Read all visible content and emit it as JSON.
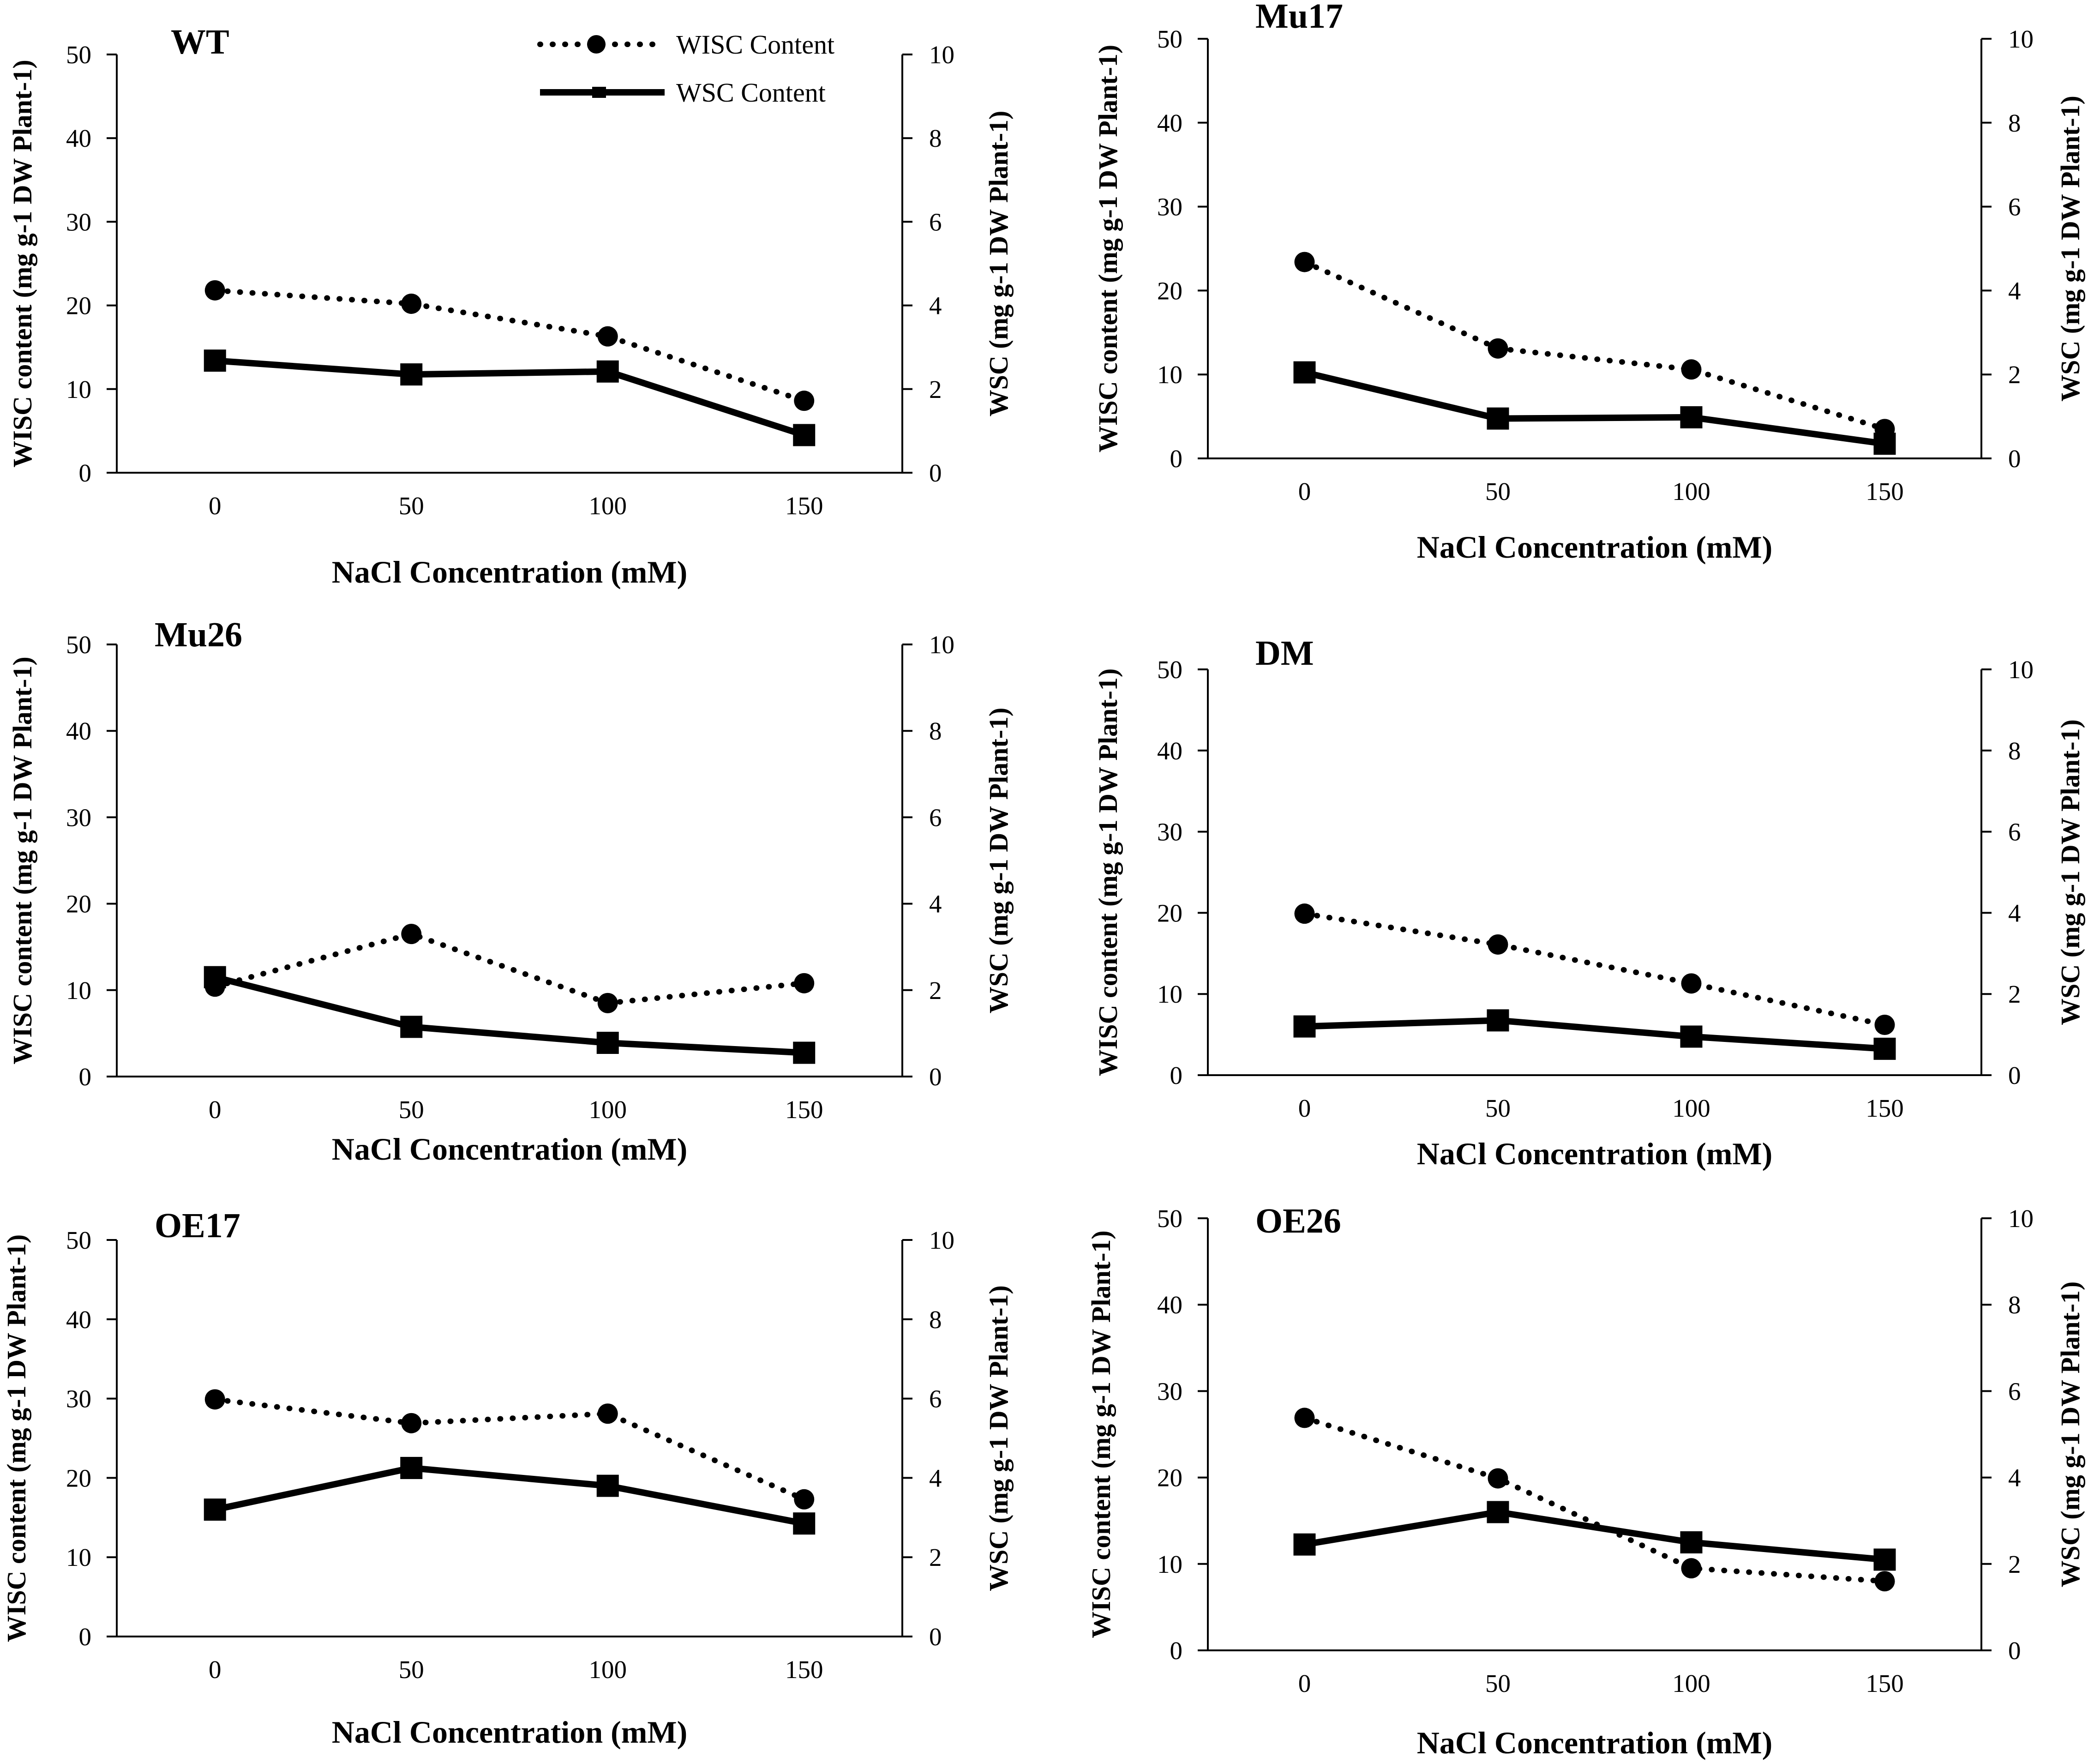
{
  "legend": {
    "wisc_label": "WISC Content",
    "wsc_label": "WSC Content"
  },
  "chart_data": [
    {
      "type": "line",
      "title": "WT",
      "categories": [
        "0",
        "50",
        "100",
        "150"
      ],
      "xlabel": "NaCl Concentration (mM)",
      "ylabel_left": "WISC content (mg g-1 DW Plant-1)",
      "ylabel_right": "WSC (mg g-1 DW Plant-1)",
      "ylim_left": [
        0,
        50
      ],
      "yticks_left": [
        "0",
        "10",
        "20",
        "30",
        "40",
        "50"
      ],
      "ylim_right": [
        0,
        10
      ],
      "yticks_right": [
        "0",
        "2",
        "4",
        "6",
        "8",
        "10"
      ],
      "series": [
        {
          "name": "WISC Content",
          "axis": "left",
          "style": "dotted",
          "marker": "circle",
          "values": [
            21.8,
            20.2,
            16.3,
            8.6
          ]
        },
        {
          "name": "WSC Content",
          "axis": "right",
          "style": "solid",
          "marker": "square",
          "values": [
            2.68,
            2.35,
            2.42,
            0.9
          ]
        }
      ]
    },
    {
      "type": "line",
      "title": "Mu17",
      "categories": [
        "0",
        "50",
        "100",
        "150"
      ],
      "xlabel": "NaCl Concentration (mM)",
      "ylabel_left": "WISC content (mg g-1 DW Plant-1)",
      "ylabel_right": "WSC (mg g-1 DW Plant-1)",
      "ylim_left": [
        0,
        50
      ],
      "yticks_left": [
        "0",
        "10",
        "20",
        "30",
        "40",
        "50"
      ],
      "ylim_right": [
        0,
        10
      ],
      "yticks_right": [
        "0",
        "2",
        "4",
        "6",
        "8",
        "10"
      ],
      "series": [
        {
          "name": "WISC Content",
          "axis": "left",
          "style": "dotted",
          "marker": "circle",
          "values": [
            23.4,
            13.1,
            10.6,
            3.5
          ]
        },
        {
          "name": "WSC Content",
          "axis": "right",
          "style": "solid",
          "marker": "square",
          "values": [
            2.05,
            0.95,
            0.98,
            0.35
          ]
        }
      ]
    },
    {
      "type": "line",
      "title": "Mu26",
      "categories": [
        "0",
        "50",
        "100",
        "150"
      ],
      "xlabel": "NaCl Concentration (mM)",
      "ylabel_left": "WISC content (mg g-1 DW Plant-1)",
      "ylabel_right": "WSC (mg g-1 DW Plant-1)",
      "ylim_left": [
        0,
        50
      ],
      "yticks_left": [
        "0",
        "10",
        "20",
        "30",
        "40",
        "50"
      ],
      "ylim_right": [
        0,
        10
      ],
      "yticks_right": [
        "0",
        "2",
        "4",
        "6",
        "8",
        "10"
      ],
      "series": [
        {
          "name": "WISC Content",
          "axis": "left",
          "style": "dotted",
          "marker": "circle",
          "values": [
            10.4,
            16.5,
            8.5,
            10.8
          ]
        },
        {
          "name": "WSC Content",
          "axis": "right",
          "style": "solid",
          "marker": "square",
          "values": [
            2.3,
            1.15,
            0.78,
            0.55
          ]
        }
      ]
    },
    {
      "type": "line",
      "title": "DM",
      "categories": [
        "0",
        "50",
        "100",
        "150"
      ],
      "xlabel": "NaCl Concentration (mM)",
      "ylabel_left": "WISC content (mg g-1 DW Plant-1)",
      "ylabel_right": "WSC (mg g-1 DW Plant-1)",
      "ylim_left": [
        0,
        50
      ],
      "yticks_left": [
        "0",
        "10",
        "20",
        "30",
        "40",
        "50"
      ],
      "ylim_right": [
        0,
        10
      ],
      "yticks_right": [
        "0",
        "2",
        "4",
        "6",
        "8",
        "10"
      ],
      "series": [
        {
          "name": "WISC Content",
          "axis": "left",
          "style": "dotted",
          "marker": "circle",
          "values": [
            19.9,
            16.1,
            11.3,
            6.2
          ]
        },
        {
          "name": "WSC Content",
          "axis": "right",
          "style": "solid",
          "marker": "square",
          "values": [
            1.2,
            1.35,
            0.95,
            0.65
          ]
        }
      ]
    },
    {
      "type": "line",
      "title": "OE17",
      "categories": [
        "0",
        "50",
        "100",
        "150"
      ],
      "xlabel": "NaCl Concentration (mM)",
      "ylabel_left": "WISC content (mg g-1 DW Plant-1)",
      "ylabel_right": "WSC (mg g-1 DW Plant-1)",
      "ylim_left": [
        0,
        50
      ],
      "yticks_left": [
        "0",
        "10",
        "20",
        "30",
        "40",
        "50"
      ],
      "ylim_right": [
        0,
        10
      ],
      "yticks_right": [
        "0",
        "2",
        "4",
        "6",
        "8",
        "10"
      ],
      "series": [
        {
          "name": "WISC Content",
          "axis": "left",
          "style": "dotted",
          "marker": "circle",
          "values": [
            29.9,
            26.9,
            28.1,
            17.3
          ]
        },
        {
          "name": "WSC Content",
          "axis": "right",
          "style": "solid",
          "marker": "square",
          "values": [
            3.2,
            4.25,
            3.8,
            2.85
          ]
        }
      ]
    },
    {
      "type": "line",
      "title": "OE26",
      "categories": [
        "0",
        "50",
        "100",
        "150"
      ],
      "xlabel": "NaCl Concentration (mM)",
      "ylabel_left": "WISC content (mg g-1 DW Plant-1)",
      "ylabel_right": "WSC (mg g-1 DW Plant-1)",
      "ylim_left": [
        0,
        50
      ],
      "yticks_left": [
        "0",
        "10",
        "20",
        "30",
        "40",
        "50"
      ],
      "ylim_right": [
        0,
        10
      ],
      "yticks_right": [
        "0",
        "2",
        "4",
        "6",
        "8",
        "10"
      ],
      "series": [
        {
          "name": "WISC Content",
          "axis": "left",
          "style": "dotted",
          "marker": "circle",
          "values": [
            26.9,
            19.9,
            9.5,
            8.0
          ]
        },
        {
          "name": "WSC Content",
          "axis": "right",
          "style": "solid",
          "marker": "square",
          "values": [
            2.45,
            3.2,
            2.5,
            2.1
          ]
        }
      ]
    }
  ]
}
